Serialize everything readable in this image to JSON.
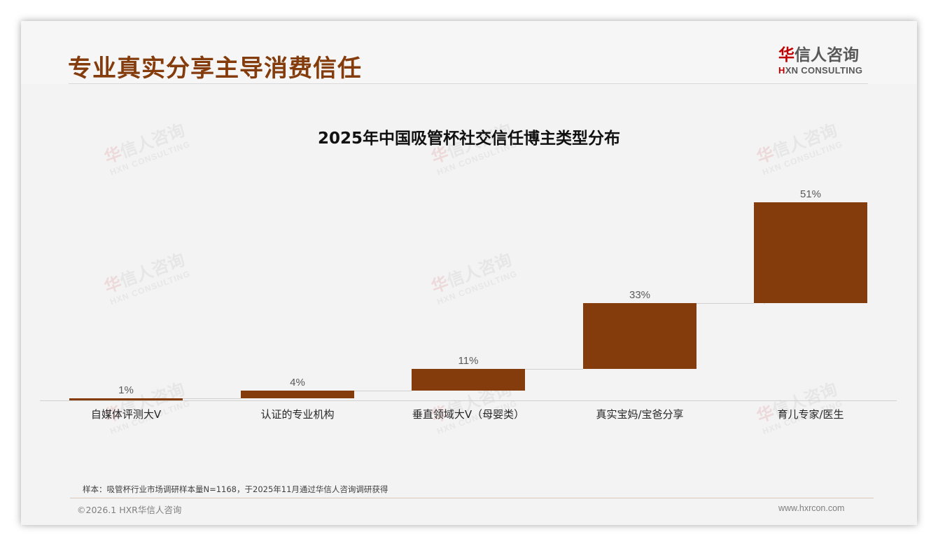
{
  "page": {
    "title": "专业真实分享主导消费信任",
    "logo": {
      "cn_accent": "华",
      "cn_rest": "信人咨询",
      "en_accent": "H",
      "en_rest": "XN CONSULTING"
    },
    "watermark": {
      "cn_accent": "华",
      "cn_rest": "信人咨询",
      "en": "HXN CONSULTING"
    },
    "note": "样本：吸管杯行业市场调研样本量N=1168，于2025年11月通过华信人咨询调研获得",
    "copyright": "©2026.1 HXR华信人咨询",
    "website": "www.hxrcon.com"
  },
  "colors": {
    "bar": "#843c0c",
    "title": "#843c0c",
    "logo_accent": "#c00000"
  },
  "chart_data": {
    "type": "bar",
    "subtype": "waterfall",
    "title": "2025年中国吸管杯社交信任博主类型分布",
    "categories": [
      "自媒体评测大V",
      "认证的专业机构",
      "垂直领域大V（母婴类）",
      "真实宝妈/宝爸分享",
      "育儿专家/医生"
    ],
    "values": [
      1,
      4,
      11,
      33,
      51
    ],
    "value_labels": [
      "1%",
      "4%",
      "11%",
      "33%",
      "51%"
    ],
    "cumulative": [
      1,
      5,
      16,
      49,
      100
    ],
    "unit": "%",
    "xlabel": "",
    "ylabel": "",
    "ylim": [
      0,
      100
    ],
    "grid": false,
    "legend": null,
    "connectors": true
  }
}
